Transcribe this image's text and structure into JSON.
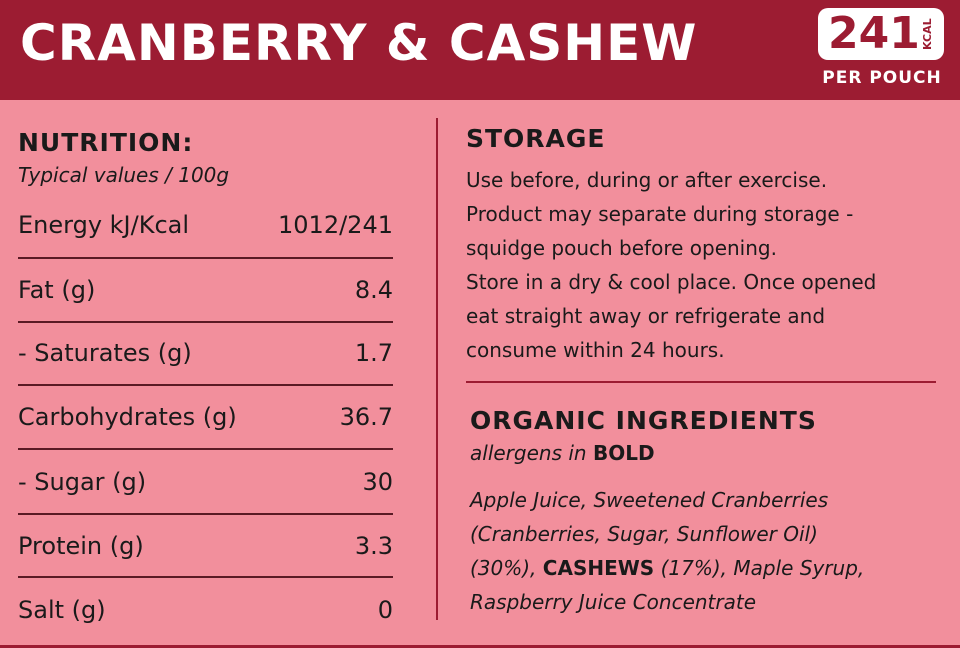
{
  "header": {
    "title": "CRANBERRY & CASHEW",
    "kcal_value": "241",
    "kcal_unit": "KCAL",
    "per_pouch": "PER POUCH"
  },
  "nutrition": {
    "heading": "NUTRITION:",
    "subheading": "Typical values / 100g",
    "rows": [
      {
        "label": "Energy kJ/Kcal",
        "value": "1012/241"
      },
      {
        "label": "Fat (g)",
        "value": "8.4"
      },
      {
        "label": "- Saturates (g)",
        "value": "1.7"
      },
      {
        "label": "Carbohydrates (g)",
        "value": "36.7"
      },
      {
        "label": "- Sugar (g)",
        "value": "30"
      },
      {
        "label": "Protein (g)",
        "value": "3.3"
      },
      {
        "label": "Salt (g)",
        "value": "0"
      }
    ]
  },
  "storage": {
    "heading": "STORAGE",
    "lines": [
      "Use before, during or after exercise.",
      "Product may separate during storage -",
      "squidge pouch before opening.",
      "Store in a dry & cool place. Once opened",
      "eat straight away or refrigerate and",
      "consume within 24 hours."
    ]
  },
  "ingredients": {
    "heading": "ORGANIC INGREDIENTS",
    "allergen_note_prefix": "allergens in ",
    "allergen_note_bold": "BOLD",
    "line1": "Apple Juice, Sweetened Cranberries",
    "line2": "(Cranberries, Sugar, Sunflower Oil)",
    "line3_pre": "(30%), ",
    "line3_bold": "CASHEWS",
    "line3_post": " (17%), Maple Syrup,",
    "line4": "Raspberry Juice Concentrate"
  },
  "colors": {
    "header_bg": "#9c1c32",
    "panel_bg": "#f28f9c",
    "text": "#1a1a1a"
  }
}
